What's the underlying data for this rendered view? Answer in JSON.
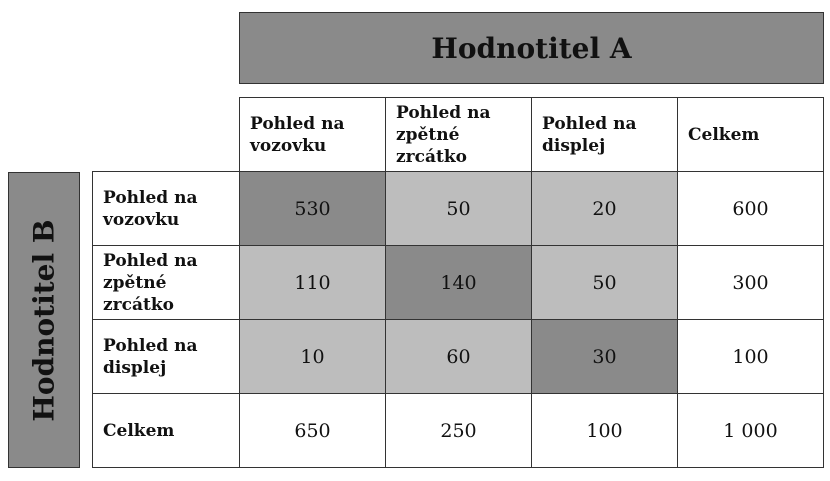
{
  "rater_a": {
    "label": "Hodnotitel A"
  },
  "rater_b": {
    "label": "Hodnotitel B"
  },
  "columns": [
    "Pohled na vozovku",
    "Pohled na zpětné zrcátko",
    "Pohled na displej",
    "Celkem"
  ],
  "rows": [
    {
      "label": "Pohled na vozovku",
      "values": [
        "530",
        "50",
        "20",
        "600"
      ]
    },
    {
      "label": "Pohled na zpětné zrcátko",
      "values": [
        "110",
        "140",
        "50",
        "300"
      ]
    },
    {
      "label": "Pohled na displej",
      "values": [
        "10",
        "60",
        "30",
        "100"
      ]
    },
    {
      "label": "Celkem",
      "values": [
        "650",
        "250",
        "100",
        "1 000"
      ]
    }
  ],
  "colors": {
    "diagonal": "#8a8a8a",
    "off_diagonal": "#bdbdbd",
    "totals": "#ffffff"
  }
}
